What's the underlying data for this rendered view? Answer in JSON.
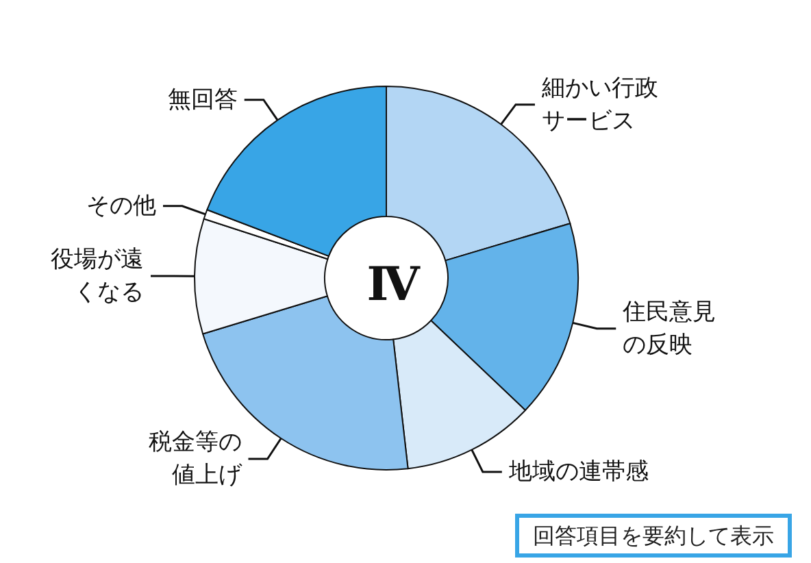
{
  "chart_data": {
    "type": "donut",
    "title": "Ⅳ",
    "categories": [
      "細かい行政サービス",
      "住民意見の反映",
      "地域の連帯感",
      "税金等の値上げ",
      "役場が遠くなる",
      "その他",
      "無回答"
    ],
    "values": [
      20.4,
      16.7,
      11.1,
      22.1,
      9.7,
      0.8,
      19.2
    ],
    "colors": [
      "#b3d6f4",
      "#63b3ea",
      "#d8eaf9",
      "#8dc3ef",
      "#f4f8fd",
      "#ffffff",
      "#38a5e6"
    ],
    "annotations": [
      "回答項目を要約して表示"
    ]
  }
}
